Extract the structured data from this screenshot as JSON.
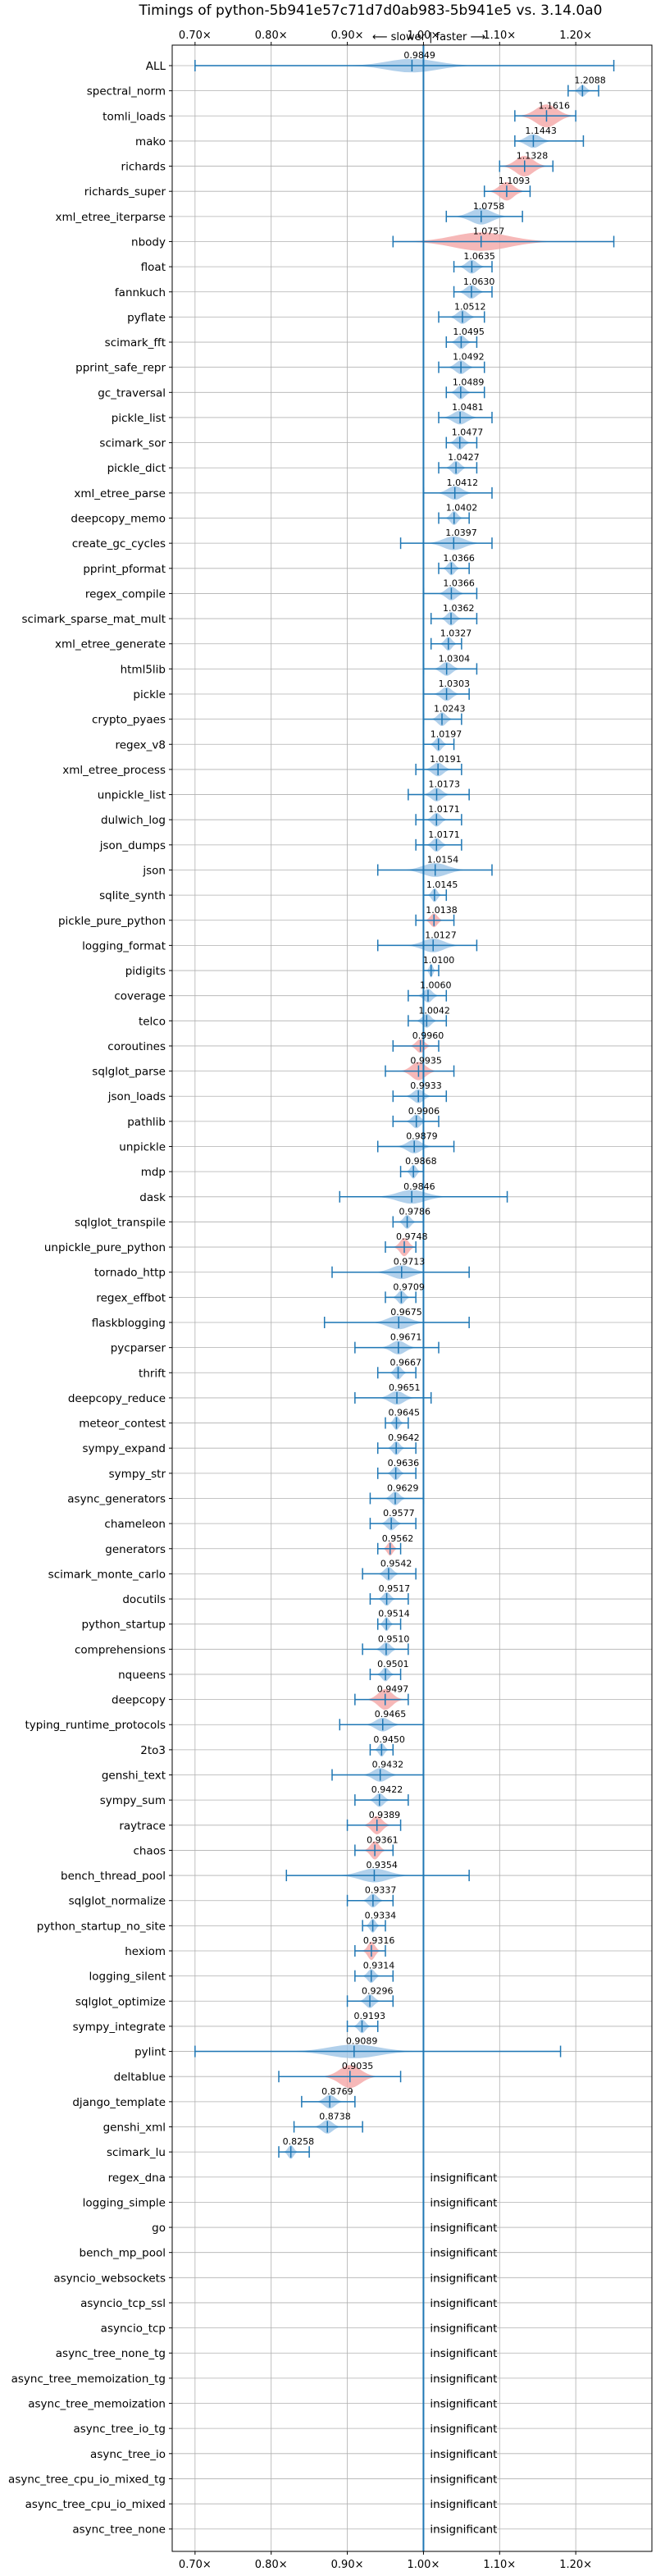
{
  "chart_data": {
    "type": "violin",
    "title": "Timings of python-5b941e57c71d7d0ab983-5b941e5 vs. 3.14.0a0",
    "annotation": "⟵ slower  |  faster ⟶",
    "xlim": [
      0.67,
      1.3
    ],
    "x_ticks": [
      0.7,
      0.8,
      0.9,
      1.0,
      1.1,
      1.2
    ],
    "x_tick_labels": [
      "0.70×",
      "0.80×",
      "0.90×",
      "1.00×",
      "1.10×",
      "1.20×"
    ],
    "reference_line": 1.0,
    "grid": true,
    "insignificant_label": "insignificant",
    "colors": {
      "normal": "#9ec4e6",
      "highlight": "#f4a6a6",
      "line": "#1f77b4",
      "grid": "#b0b0b0"
    },
    "benchmarks": [
      {
        "name": "ALL",
        "value": 0.9849,
        "label": "0.9849",
        "min": 0.7,
        "max": 1.25,
        "spread": 0.07,
        "width": 0.6,
        "highlight": false
      },
      {
        "name": "spectral_norm",
        "value": 1.2088,
        "label": "1.2088",
        "min": 1.19,
        "max": 1.23,
        "spread": 0.01,
        "width": 0.5,
        "highlight": false
      },
      {
        "name": "tomli_loads",
        "value": 1.1616,
        "label": "1.1616",
        "min": 1.12,
        "max": 1.2,
        "spread": 0.03,
        "width": 1.0,
        "highlight": true
      },
      {
        "name": "mako",
        "value": 1.1443,
        "label": "1.1443",
        "min": 1.12,
        "max": 1.21,
        "spread": 0.02,
        "width": 0.6,
        "highlight": false
      },
      {
        "name": "richards",
        "value": 1.1328,
        "label": "1.1328",
        "min": 1.1,
        "max": 1.17,
        "spread": 0.025,
        "width": 0.9,
        "highlight": true
      },
      {
        "name": "richards_super",
        "value": 1.1093,
        "label": "1.1093",
        "min": 1.08,
        "max": 1.14,
        "spread": 0.02,
        "width": 0.8,
        "highlight": true
      },
      {
        "name": "xml_etree_iterparse",
        "value": 1.0758,
        "label": "1.0758",
        "min": 1.03,
        "max": 1.13,
        "spread": 0.03,
        "width": 0.7,
        "highlight": false
      },
      {
        "name": "nbody",
        "value": 1.0757,
        "label": "1.0757",
        "min": 0.96,
        "max": 1.25,
        "spread": 0.08,
        "width": 0.8,
        "highlight": true
      },
      {
        "name": "float",
        "value": 1.0635,
        "label": "1.0635",
        "min": 1.04,
        "max": 1.09,
        "spread": 0.015,
        "width": 0.6,
        "highlight": false
      },
      {
        "name": "fannkuch",
        "value": 1.063,
        "label": "1.0630",
        "min": 1.04,
        "max": 1.09,
        "spread": 0.015,
        "width": 0.6,
        "highlight": false
      },
      {
        "name": "pyflate",
        "value": 1.0512,
        "label": "1.0512",
        "min": 1.02,
        "max": 1.08,
        "spread": 0.015,
        "width": 0.6,
        "highlight": false
      },
      {
        "name": "scimark_fft",
        "value": 1.0495,
        "label": "1.0495",
        "min": 1.03,
        "max": 1.07,
        "spread": 0.012,
        "width": 0.6,
        "highlight": false
      },
      {
        "name": "pprint_safe_repr",
        "value": 1.0492,
        "label": "1.0492",
        "min": 1.02,
        "max": 1.08,
        "spread": 0.015,
        "width": 0.6,
        "highlight": false
      },
      {
        "name": "gc_traversal",
        "value": 1.0489,
        "label": "1.0489",
        "min": 1.03,
        "max": 1.08,
        "spread": 0.012,
        "width": 0.6,
        "highlight": false
      },
      {
        "name": "pickle_list",
        "value": 1.0481,
        "label": "1.0481",
        "min": 1.02,
        "max": 1.09,
        "spread": 0.02,
        "width": 0.6,
        "highlight": false
      },
      {
        "name": "scimark_sor",
        "value": 1.0477,
        "label": "1.0477",
        "min": 1.03,
        "max": 1.07,
        "spread": 0.012,
        "width": 0.6,
        "highlight": false
      },
      {
        "name": "pickle_dict",
        "value": 1.0427,
        "label": "1.0427",
        "min": 1.02,
        "max": 1.07,
        "spread": 0.012,
        "width": 0.6,
        "highlight": false
      },
      {
        "name": "xml_etree_parse",
        "value": 1.0412,
        "label": "1.0412",
        "min": 1.0,
        "max": 1.09,
        "spread": 0.02,
        "width": 0.6,
        "highlight": false
      },
      {
        "name": "deepcopy_memo",
        "value": 1.0402,
        "label": "1.0402",
        "min": 1.02,
        "max": 1.06,
        "spread": 0.01,
        "width": 0.6,
        "highlight": false
      },
      {
        "name": "create_gc_cycles",
        "value": 1.0397,
        "label": "1.0397",
        "min": 0.97,
        "max": 1.09,
        "spread": 0.03,
        "width": 0.6,
        "highlight": false
      },
      {
        "name": "pprint_pformat",
        "value": 1.0366,
        "label": "1.0366",
        "min": 1.02,
        "max": 1.06,
        "spread": 0.01,
        "width": 0.6,
        "highlight": false
      },
      {
        "name": "regex_compile",
        "value": 1.0366,
        "label": "1.0366",
        "min": 1.0,
        "max": 1.07,
        "spread": 0.015,
        "width": 0.6,
        "highlight": false
      },
      {
        "name": "scimark_sparse_mat_mult",
        "value": 1.0362,
        "label": "1.0362",
        "min": 1.01,
        "max": 1.07,
        "spread": 0.012,
        "width": 0.6,
        "highlight": false
      },
      {
        "name": "xml_etree_generate",
        "value": 1.0327,
        "label": "1.0327",
        "min": 1.01,
        "max": 1.05,
        "spread": 0.01,
        "width": 0.6,
        "highlight": false
      },
      {
        "name": "html5lib",
        "value": 1.0304,
        "label": "1.0304",
        "min": 1.0,
        "max": 1.07,
        "spread": 0.015,
        "width": 0.6,
        "highlight": false
      },
      {
        "name": "pickle",
        "value": 1.0303,
        "label": "1.0303",
        "min": 1.0,
        "max": 1.06,
        "spread": 0.015,
        "width": 0.6,
        "highlight": false
      },
      {
        "name": "crypto_pyaes",
        "value": 1.0243,
        "label": "1.0243",
        "min": 1.0,
        "max": 1.05,
        "spread": 0.012,
        "width": 0.6,
        "highlight": false
      },
      {
        "name": "regex_v8",
        "value": 1.0197,
        "label": "1.0197",
        "min": 1.0,
        "max": 1.04,
        "spread": 0.01,
        "width": 0.6,
        "highlight": false
      },
      {
        "name": "xml_etree_process",
        "value": 1.0191,
        "label": "1.0191",
        "min": 0.99,
        "max": 1.05,
        "spread": 0.015,
        "width": 0.6,
        "highlight": false
      },
      {
        "name": "unpickle_list",
        "value": 1.0173,
        "label": "1.0173",
        "min": 0.98,
        "max": 1.06,
        "spread": 0.015,
        "width": 0.6,
        "highlight": false
      },
      {
        "name": "dulwich_log",
        "value": 1.0171,
        "label": "1.0171",
        "min": 0.99,
        "max": 1.05,
        "spread": 0.012,
        "width": 0.6,
        "highlight": false
      },
      {
        "name": "json_dumps",
        "value": 1.0171,
        "label": "1.0171",
        "min": 0.99,
        "max": 1.05,
        "spread": 0.012,
        "width": 0.6,
        "highlight": false
      },
      {
        "name": "json",
        "value": 1.0154,
        "label": "1.0154",
        "min": 0.94,
        "max": 1.09,
        "spread": 0.035,
        "width": 0.6,
        "highlight": false
      },
      {
        "name": "sqlite_synth",
        "value": 1.0145,
        "label": "1.0145",
        "min": 1.0,
        "max": 1.03,
        "spread": 0.008,
        "width": 0.6,
        "highlight": false
      },
      {
        "name": "pickle_pure_python",
        "value": 1.0138,
        "label": "1.0138",
        "min": 0.99,
        "max": 1.04,
        "spread": 0.01,
        "width": 0.6,
        "highlight": true
      },
      {
        "name": "logging_format",
        "value": 1.0127,
        "label": "1.0127",
        "min": 0.94,
        "max": 1.07,
        "spread": 0.03,
        "width": 0.6,
        "highlight": false
      },
      {
        "name": "pidigits",
        "value": 1.01,
        "label": "1.0100",
        "min": 1.0,
        "max": 1.02,
        "spread": 0.005,
        "width": 0.6,
        "highlight": false
      },
      {
        "name": "coverage",
        "value": 1.006,
        "label": "1.0060",
        "min": 0.98,
        "max": 1.03,
        "spread": 0.012,
        "width": 0.6,
        "highlight": false
      },
      {
        "name": "telco",
        "value": 1.0042,
        "label": "1.0042",
        "min": 0.98,
        "max": 1.03,
        "spread": 0.012,
        "width": 0.6,
        "highlight": false
      },
      {
        "name": "coroutines",
        "value": 0.996,
        "label": "0.9960",
        "min": 0.96,
        "max": 1.02,
        "spread": 0.012,
        "width": 0.6,
        "highlight": true
      },
      {
        "name": "sqlglot_parse",
        "value": 0.9935,
        "label": "0.9935",
        "min": 0.95,
        "max": 1.04,
        "spread": 0.02,
        "width": 0.8,
        "highlight": true
      },
      {
        "name": "json_loads",
        "value": 0.9933,
        "label": "0.9933",
        "min": 0.96,
        "max": 1.03,
        "spread": 0.015,
        "width": 0.6,
        "highlight": false
      },
      {
        "name": "pathlib",
        "value": 0.9906,
        "label": "0.9906",
        "min": 0.96,
        "max": 1.02,
        "spread": 0.012,
        "width": 0.6,
        "highlight": false
      },
      {
        "name": "unpickle",
        "value": 0.9879,
        "label": "0.9879",
        "min": 0.94,
        "max": 1.04,
        "spread": 0.02,
        "width": 0.6,
        "highlight": false
      },
      {
        "name": "mdp",
        "value": 0.9868,
        "label": "0.9868",
        "min": 0.97,
        "max": 1.0,
        "spread": 0.008,
        "width": 0.6,
        "highlight": false
      },
      {
        "name": "dask",
        "value": 0.9846,
        "label": "0.9846",
        "min": 0.89,
        "max": 1.11,
        "spread": 0.04,
        "width": 0.6,
        "highlight": false
      },
      {
        "name": "sqlglot_transpile",
        "value": 0.9786,
        "label": "0.9786",
        "min": 0.96,
        "max": 1.0,
        "spread": 0.01,
        "width": 0.6,
        "highlight": false
      },
      {
        "name": "unpickle_pure_python",
        "value": 0.9748,
        "label": "0.9748",
        "min": 0.95,
        "max": 0.99,
        "spread": 0.012,
        "width": 0.8,
        "highlight": true
      },
      {
        "name": "tornado_http",
        "value": 0.9713,
        "label": "0.9713",
        "min": 0.88,
        "max": 1.06,
        "spread": 0.03,
        "width": 0.6,
        "highlight": false
      },
      {
        "name": "regex_effbot",
        "value": 0.9709,
        "label": "0.9709",
        "min": 0.95,
        "max": 0.99,
        "spread": 0.01,
        "width": 0.6,
        "highlight": false
      },
      {
        "name": "flaskblogging",
        "value": 0.9675,
        "label": "0.9675",
        "min": 0.87,
        "max": 1.06,
        "spread": 0.03,
        "width": 0.6,
        "highlight": false
      },
      {
        "name": "pycparser",
        "value": 0.9671,
        "label": "0.9671",
        "min": 0.91,
        "max": 1.02,
        "spread": 0.02,
        "width": 0.6,
        "highlight": false
      },
      {
        "name": "thrift",
        "value": 0.9667,
        "label": "0.9667",
        "min": 0.94,
        "max": 0.99,
        "spread": 0.01,
        "width": 0.6,
        "highlight": false
      },
      {
        "name": "deepcopy_reduce",
        "value": 0.9651,
        "label": "0.9651",
        "min": 0.91,
        "max": 1.01,
        "spread": 0.02,
        "width": 0.6,
        "highlight": false
      },
      {
        "name": "meteor_contest",
        "value": 0.9645,
        "label": "0.9645",
        "min": 0.95,
        "max": 0.98,
        "spread": 0.008,
        "width": 0.6,
        "highlight": false
      },
      {
        "name": "sympy_expand",
        "value": 0.9642,
        "label": "0.9642",
        "min": 0.94,
        "max": 0.99,
        "spread": 0.01,
        "width": 0.6,
        "highlight": false
      },
      {
        "name": "sympy_str",
        "value": 0.9636,
        "label": "0.9636",
        "min": 0.94,
        "max": 0.99,
        "spread": 0.01,
        "width": 0.6,
        "highlight": false
      },
      {
        "name": "async_generators",
        "value": 0.9629,
        "label": "0.9629",
        "min": 0.93,
        "max": 1.0,
        "spread": 0.012,
        "width": 0.6,
        "highlight": false
      },
      {
        "name": "chameleon",
        "value": 0.9577,
        "label": "0.9577",
        "min": 0.93,
        "max": 0.99,
        "spread": 0.012,
        "width": 0.6,
        "highlight": false
      },
      {
        "name": "generators",
        "value": 0.9562,
        "label": "0.9562",
        "min": 0.94,
        "max": 0.97,
        "spread": 0.008,
        "width": 0.6,
        "highlight": true
      },
      {
        "name": "scimark_monte_carlo",
        "value": 0.9542,
        "label": "0.9542",
        "min": 0.92,
        "max": 0.99,
        "spread": 0.012,
        "width": 0.6,
        "highlight": false
      },
      {
        "name": "docutils",
        "value": 0.9517,
        "label": "0.9517",
        "min": 0.93,
        "max": 0.98,
        "spread": 0.01,
        "width": 0.6,
        "highlight": false
      },
      {
        "name": "python_startup",
        "value": 0.9514,
        "label": "0.9514",
        "min": 0.94,
        "max": 0.97,
        "spread": 0.008,
        "width": 0.6,
        "highlight": false
      },
      {
        "name": "comprehensions",
        "value": 0.951,
        "label": "0.9510",
        "min": 0.92,
        "max": 0.98,
        "spread": 0.012,
        "width": 0.6,
        "highlight": false
      },
      {
        "name": "nqueens",
        "value": 0.9501,
        "label": "0.9501",
        "min": 0.93,
        "max": 0.97,
        "spread": 0.01,
        "width": 0.6,
        "highlight": false
      },
      {
        "name": "deepcopy",
        "value": 0.9497,
        "label": "0.9497",
        "min": 0.91,
        "max": 0.98,
        "spread": 0.02,
        "width": 0.9,
        "highlight": true
      },
      {
        "name": "typing_runtime_protocols",
        "value": 0.9465,
        "label": "0.9465",
        "min": 0.89,
        "max": 1.0,
        "spread": 0.02,
        "width": 0.6,
        "highlight": false
      },
      {
        "name": "2to3",
        "value": 0.945,
        "label": "0.9450",
        "min": 0.93,
        "max": 0.96,
        "spread": 0.008,
        "width": 0.6,
        "highlight": false
      },
      {
        "name": "genshi_text",
        "value": 0.9432,
        "label": "0.9432",
        "min": 0.88,
        "max": 1.0,
        "spread": 0.02,
        "width": 0.6,
        "highlight": false
      },
      {
        "name": "sympy_sum",
        "value": 0.9422,
        "label": "0.9422",
        "min": 0.91,
        "max": 0.98,
        "spread": 0.012,
        "width": 0.6,
        "highlight": false
      },
      {
        "name": "raytrace",
        "value": 0.9389,
        "label": "0.9389",
        "min": 0.9,
        "max": 0.97,
        "spread": 0.015,
        "width": 0.8,
        "highlight": true
      },
      {
        "name": "chaos",
        "value": 0.9361,
        "label": "0.9361",
        "min": 0.91,
        "max": 0.96,
        "spread": 0.012,
        "width": 0.8,
        "highlight": true
      },
      {
        "name": "bench_thread_pool",
        "value": 0.9354,
        "label": "0.9354",
        "min": 0.82,
        "max": 1.06,
        "spread": 0.04,
        "width": 0.6,
        "highlight": false
      },
      {
        "name": "sqlglot_normalize",
        "value": 0.9337,
        "label": "0.9337",
        "min": 0.9,
        "max": 0.96,
        "spread": 0.012,
        "width": 0.6,
        "highlight": false
      },
      {
        "name": "python_startup_no_site",
        "value": 0.9334,
        "label": "0.9334",
        "min": 0.92,
        "max": 0.95,
        "spread": 0.008,
        "width": 0.6,
        "highlight": false
      },
      {
        "name": "hexiom",
        "value": 0.9316,
        "label": "0.9316",
        "min": 0.91,
        "max": 0.95,
        "spread": 0.01,
        "width": 0.8,
        "highlight": true
      },
      {
        "name": "logging_silent",
        "value": 0.9314,
        "label": "0.9314",
        "min": 0.91,
        "max": 0.96,
        "spread": 0.01,
        "width": 0.6,
        "highlight": false
      },
      {
        "name": "sqlglot_optimize",
        "value": 0.9296,
        "label": "0.9296",
        "min": 0.9,
        "max": 0.96,
        "spread": 0.012,
        "width": 0.6,
        "highlight": false
      },
      {
        "name": "sympy_integrate",
        "value": 0.9193,
        "label": "0.9193",
        "min": 0.9,
        "max": 0.94,
        "spread": 0.01,
        "width": 0.6,
        "highlight": false
      },
      {
        "name": "pylint",
        "value": 0.9089,
        "label": "0.9089",
        "min": 0.7,
        "max": 1.18,
        "spread": 0.07,
        "width": 0.6,
        "highlight": false
      },
      {
        "name": "deltablue",
        "value": 0.9035,
        "label": "0.9035",
        "min": 0.81,
        "max": 0.97,
        "spread": 0.03,
        "width": 1.0,
        "highlight": true
      },
      {
        "name": "django_template",
        "value": 0.8769,
        "label": "0.8769",
        "min": 0.84,
        "max": 0.91,
        "spread": 0.015,
        "width": 0.6,
        "highlight": false
      },
      {
        "name": "genshi_xml",
        "value": 0.8738,
        "label": "0.8738",
        "min": 0.83,
        "max": 0.92,
        "spread": 0.015,
        "width": 0.6,
        "highlight": false
      },
      {
        "name": "scimark_lu",
        "value": 0.8258,
        "label": "0.8258",
        "min": 0.81,
        "max": 0.85,
        "spread": 0.008,
        "width": 0.6,
        "highlight": false
      },
      {
        "name": "regex_dna",
        "insignificant": true
      },
      {
        "name": "logging_simple",
        "insignificant": true
      },
      {
        "name": "go",
        "insignificant": true
      },
      {
        "name": "bench_mp_pool",
        "insignificant": true
      },
      {
        "name": "asyncio_websockets",
        "insignificant": true
      },
      {
        "name": "asyncio_tcp_ssl",
        "insignificant": true
      },
      {
        "name": "asyncio_tcp",
        "insignificant": true
      },
      {
        "name": "async_tree_none_tg",
        "insignificant": true
      },
      {
        "name": "async_tree_memoization_tg",
        "insignificant": true
      },
      {
        "name": "async_tree_memoization",
        "insignificant": true
      },
      {
        "name": "async_tree_io_tg",
        "insignificant": true
      },
      {
        "name": "async_tree_io",
        "insignificant": true
      },
      {
        "name": "async_tree_cpu_io_mixed_tg",
        "insignificant": true
      },
      {
        "name": "async_tree_cpu_io_mixed",
        "insignificant": true
      },
      {
        "name": "async_tree_none",
        "insignificant": true
      }
    ]
  }
}
